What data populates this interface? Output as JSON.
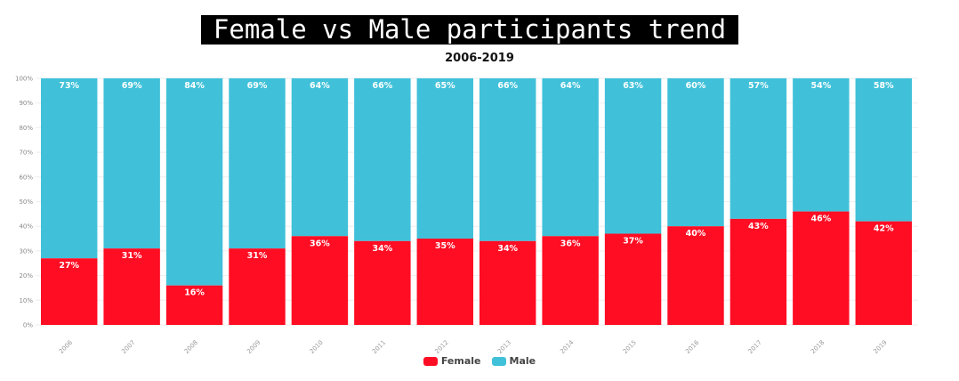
{
  "chart_data": {
    "type": "bar",
    "stacked": true,
    "title": "Female vs Male participants trend",
    "subtitle": "2006-2019",
    "xlabel": "",
    "ylabel": "",
    "ylim": [
      0,
      100
    ],
    "yticks": [
      "0%",
      "10%",
      "20%",
      "30%",
      "40%",
      "50%",
      "60%",
      "70%",
      "80%",
      "90%",
      "100%"
    ],
    "categories": [
      "2006",
      "2007",
      "2008",
      "2009",
      "2010",
      "2011",
      "2012",
      "2013",
      "2014",
      "2015",
      "2016",
      "2017",
      "2018",
      "2019"
    ],
    "series": [
      {
        "name": "Female",
        "color": "#ff0d23",
        "values": [
          27,
          31,
          16,
          31,
          36,
          34,
          35,
          34,
          36,
          37,
          40,
          43,
          46,
          42
        ]
      },
      {
        "name": "Male",
        "color": "#40c1d9",
        "values": [
          73,
          69,
          84,
          69,
          64,
          66,
          65,
          66,
          64,
          63,
          60,
          57,
          54,
          58
        ]
      }
    ],
    "grid": true,
    "legend": "bottom-center"
  }
}
